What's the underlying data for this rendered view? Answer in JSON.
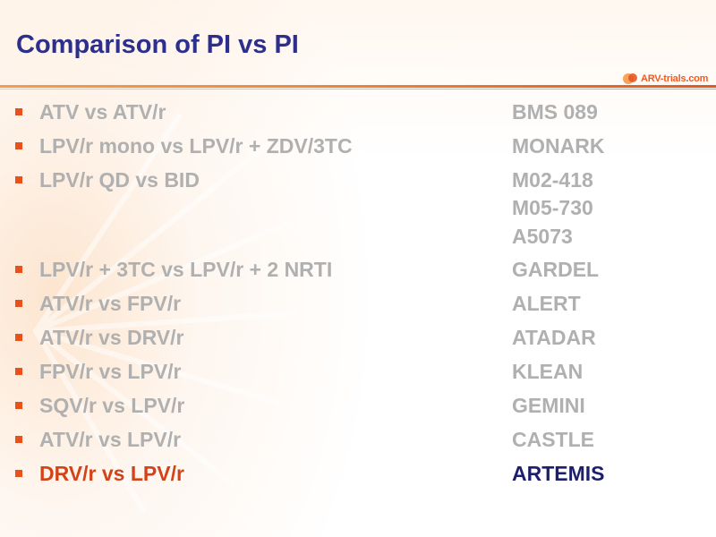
{
  "slide": {
    "title": "Comparison of PI vs PI",
    "logo": {
      "brand": "ARV-trials",
      "suffix": "com",
      "icon": "arv-trials-logo-icon"
    },
    "colors": {
      "title": "#2c2f8c",
      "inactive_text": "#b0b0b0",
      "active_label": "#d2431a",
      "active_study": "#1d1f6e",
      "bullet": "#e8501c",
      "rule": "#f08a3a"
    },
    "rows": [
      {
        "label": "ATV vs ATV/r",
        "studies": [
          "BMS 089"
        ],
        "active": false
      },
      {
        "label": "LPV/r mono vs LPV/r + ZDV/3TC",
        "studies": [
          "MONARK"
        ],
        "active": false
      },
      {
        "label": "LPV/r QD vs BID",
        "studies": [
          "M02-418",
          "M05-730",
          "A5073"
        ],
        "active": false
      },
      {
        "label": "LPV/r + 3TC vs LPV/r + 2 NRTI",
        "studies": [
          "GARDEL"
        ],
        "active": false
      },
      {
        "label": "ATV/r vs FPV/r",
        "studies": [
          "ALERT"
        ],
        "active": false
      },
      {
        "label": "ATV/r vs DRV/r",
        "studies": [
          "ATADAR"
        ],
        "active": false
      },
      {
        "label": "FPV/r vs LPV/r",
        "studies": [
          "KLEAN"
        ],
        "active": false
      },
      {
        "label": "SQV/r vs LPV/r",
        "studies": [
          "GEMINI"
        ],
        "active": false
      },
      {
        "label": "ATV/r vs LPV/r",
        "studies": [
          "CASTLE"
        ],
        "active": false
      },
      {
        "label": "DRV/r vs LPV/r",
        "studies": [
          "ARTEMIS"
        ],
        "active": true
      }
    ]
  }
}
